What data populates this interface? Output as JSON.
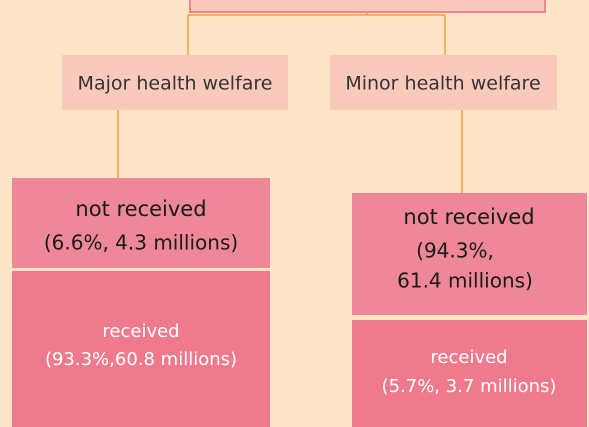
{
  "nodes": [
    {
      "label": "Major health welfare"
    },
    {
      "label": "Minor health welfare"
    },
    {
      "lines": [
        "not received",
        "(6.6%, 4.3 millions)"
      ]
    },
    {
      "lines": [
        "received",
        "(93.3%,60.8 millions)"
      ]
    },
    {
      "lines": [
        "not received",
        "(94.3%,",
        "61.4 millions)"
      ]
    },
    {
      "lines": [
        "received",
        "(5.7%, 3.7 millions)"
      ]
    }
  ]
}
